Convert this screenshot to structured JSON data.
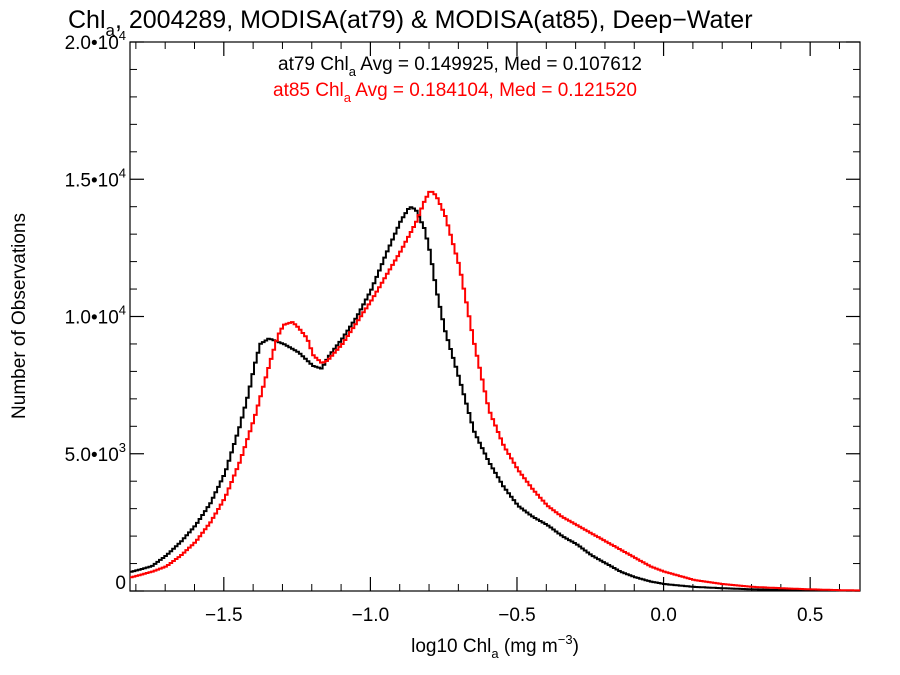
{
  "chart_data": {
    "type": "line",
    "title": "Chl",
    "title_subscript": "a",
    "title_rest": ", 2004289, MODISA(at79) & MODISA(at85), Deep−Water",
    "xlabel_main": "log10 Chl",
    "xlabel_sub": "a",
    "xlabel_units_pre": " (mg m",
    "xlabel_units_sup": "−3",
    "xlabel_units_post": ")",
    "ylabel": "Number of Observations",
    "xlim": [
      -1.82,
      0.67
    ],
    "ylim": [
      0,
      20000
    ],
    "x_ticks": [
      {
        "value": -1.5,
        "label": "−1.5"
      },
      {
        "value": -1.0,
        "label": "−1.0"
      },
      {
        "value": -0.5,
        "label": "−0.5"
      },
      {
        "value": 0.0,
        "label": "0.0"
      },
      {
        "value": 0.5,
        "label": "0.5"
      }
    ],
    "y_ticks": [
      {
        "value": 0,
        "label": "0"
      },
      {
        "value": 5000,
        "label": "5.0•10",
        "sup": "3"
      },
      {
        "value": 10000,
        "label": "1.0•10",
        "sup": "4"
      },
      {
        "value": 15000,
        "label": "1.5•10",
        "sup": "4"
      },
      {
        "value": 20000,
        "label": "2.0•10",
        "sup": "4"
      }
    ],
    "annotations": [
      {
        "pre": "at79 Chl",
        "sub": "a",
        "post": " Avg = 0.149925, Med = 0.107612",
        "color": "#000000"
      },
      {
        "pre": "at85 Chl",
        "sub": "a",
        "post": " Avg = 0.184104, Med = 0.121520",
        "color": "#ff0000"
      }
    ],
    "series": [
      {
        "color": "#000000",
        "x": [
          -1.82,
          -1.75,
          -1.7,
          -1.65,
          -1.6,
          -1.55,
          -1.5,
          -1.45,
          -1.42,
          -1.4,
          -1.38,
          -1.35,
          -1.3,
          -1.25,
          -1.2,
          -1.17,
          -1.15,
          -1.1,
          -1.05,
          -1.0,
          -0.95,
          -0.9,
          -0.87,
          -0.85,
          -0.82,
          -0.8,
          -0.78,
          -0.75,
          -0.7,
          -0.65,
          -0.6,
          -0.55,
          -0.5,
          -0.45,
          -0.4,
          -0.35,
          -0.3,
          -0.25,
          -0.2,
          -0.15,
          -0.1,
          -0.05,
          0.0,
          0.1,
          0.2,
          0.3,
          0.4,
          0.5,
          0.6,
          0.67
        ],
        "values": [
          700,
          900,
          1300,
          1800,
          2400,
          3200,
          4300,
          6000,
          7200,
          8200,
          9000,
          9200,
          9000,
          8700,
          8200,
          8100,
          8500,
          9200,
          10000,
          11000,
          12300,
          13500,
          14000,
          13900,
          13200,
          12300,
          11000,
          9500,
          7700,
          5800,
          4700,
          3800,
          3100,
          2700,
          2400,
          2000,
          1700,
          1300,
          1000,
          700,
          500,
          350,
          250,
          150,
          100,
          60,
          40,
          30,
          20,
          15
        ]
      },
      {
        "color": "#ff0000",
        "x": [
          -1.82,
          -1.75,
          -1.7,
          -1.65,
          -1.6,
          -1.55,
          -1.5,
          -1.45,
          -1.4,
          -1.35,
          -1.32,
          -1.3,
          -1.27,
          -1.25,
          -1.22,
          -1.2,
          -1.17,
          -1.15,
          -1.1,
          -1.05,
          -1.0,
          -0.95,
          -0.9,
          -0.85,
          -0.82,
          -0.8,
          -0.78,
          -0.75,
          -0.7,
          -0.65,
          -0.6,
          -0.55,
          -0.5,
          -0.45,
          -0.4,
          -0.35,
          -0.3,
          -0.25,
          -0.2,
          -0.15,
          -0.1,
          -0.05,
          0.0,
          0.1,
          0.2,
          0.3,
          0.4,
          0.5,
          0.6,
          0.67
        ],
        "values": [
          500,
          700,
          900,
          1300,
          1800,
          2500,
          3400,
          4700,
          6300,
          8200,
          9300,
          9700,
          9800,
          9600,
          9200,
          8600,
          8300,
          8400,
          9000,
          9800,
          10600,
          11500,
          12400,
          13400,
          14200,
          14600,
          14400,
          13700,
          11800,
          9000,
          6600,
          5300,
          4400,
          3700,
          3100,
          2700,
          2400,
          2100,
          1800,
          1500,
          1200,
          900,
          700,
          400,
          250,
          150,
          100,
          60,
          30,
          20
        ]
      }
    ]
  }
}
